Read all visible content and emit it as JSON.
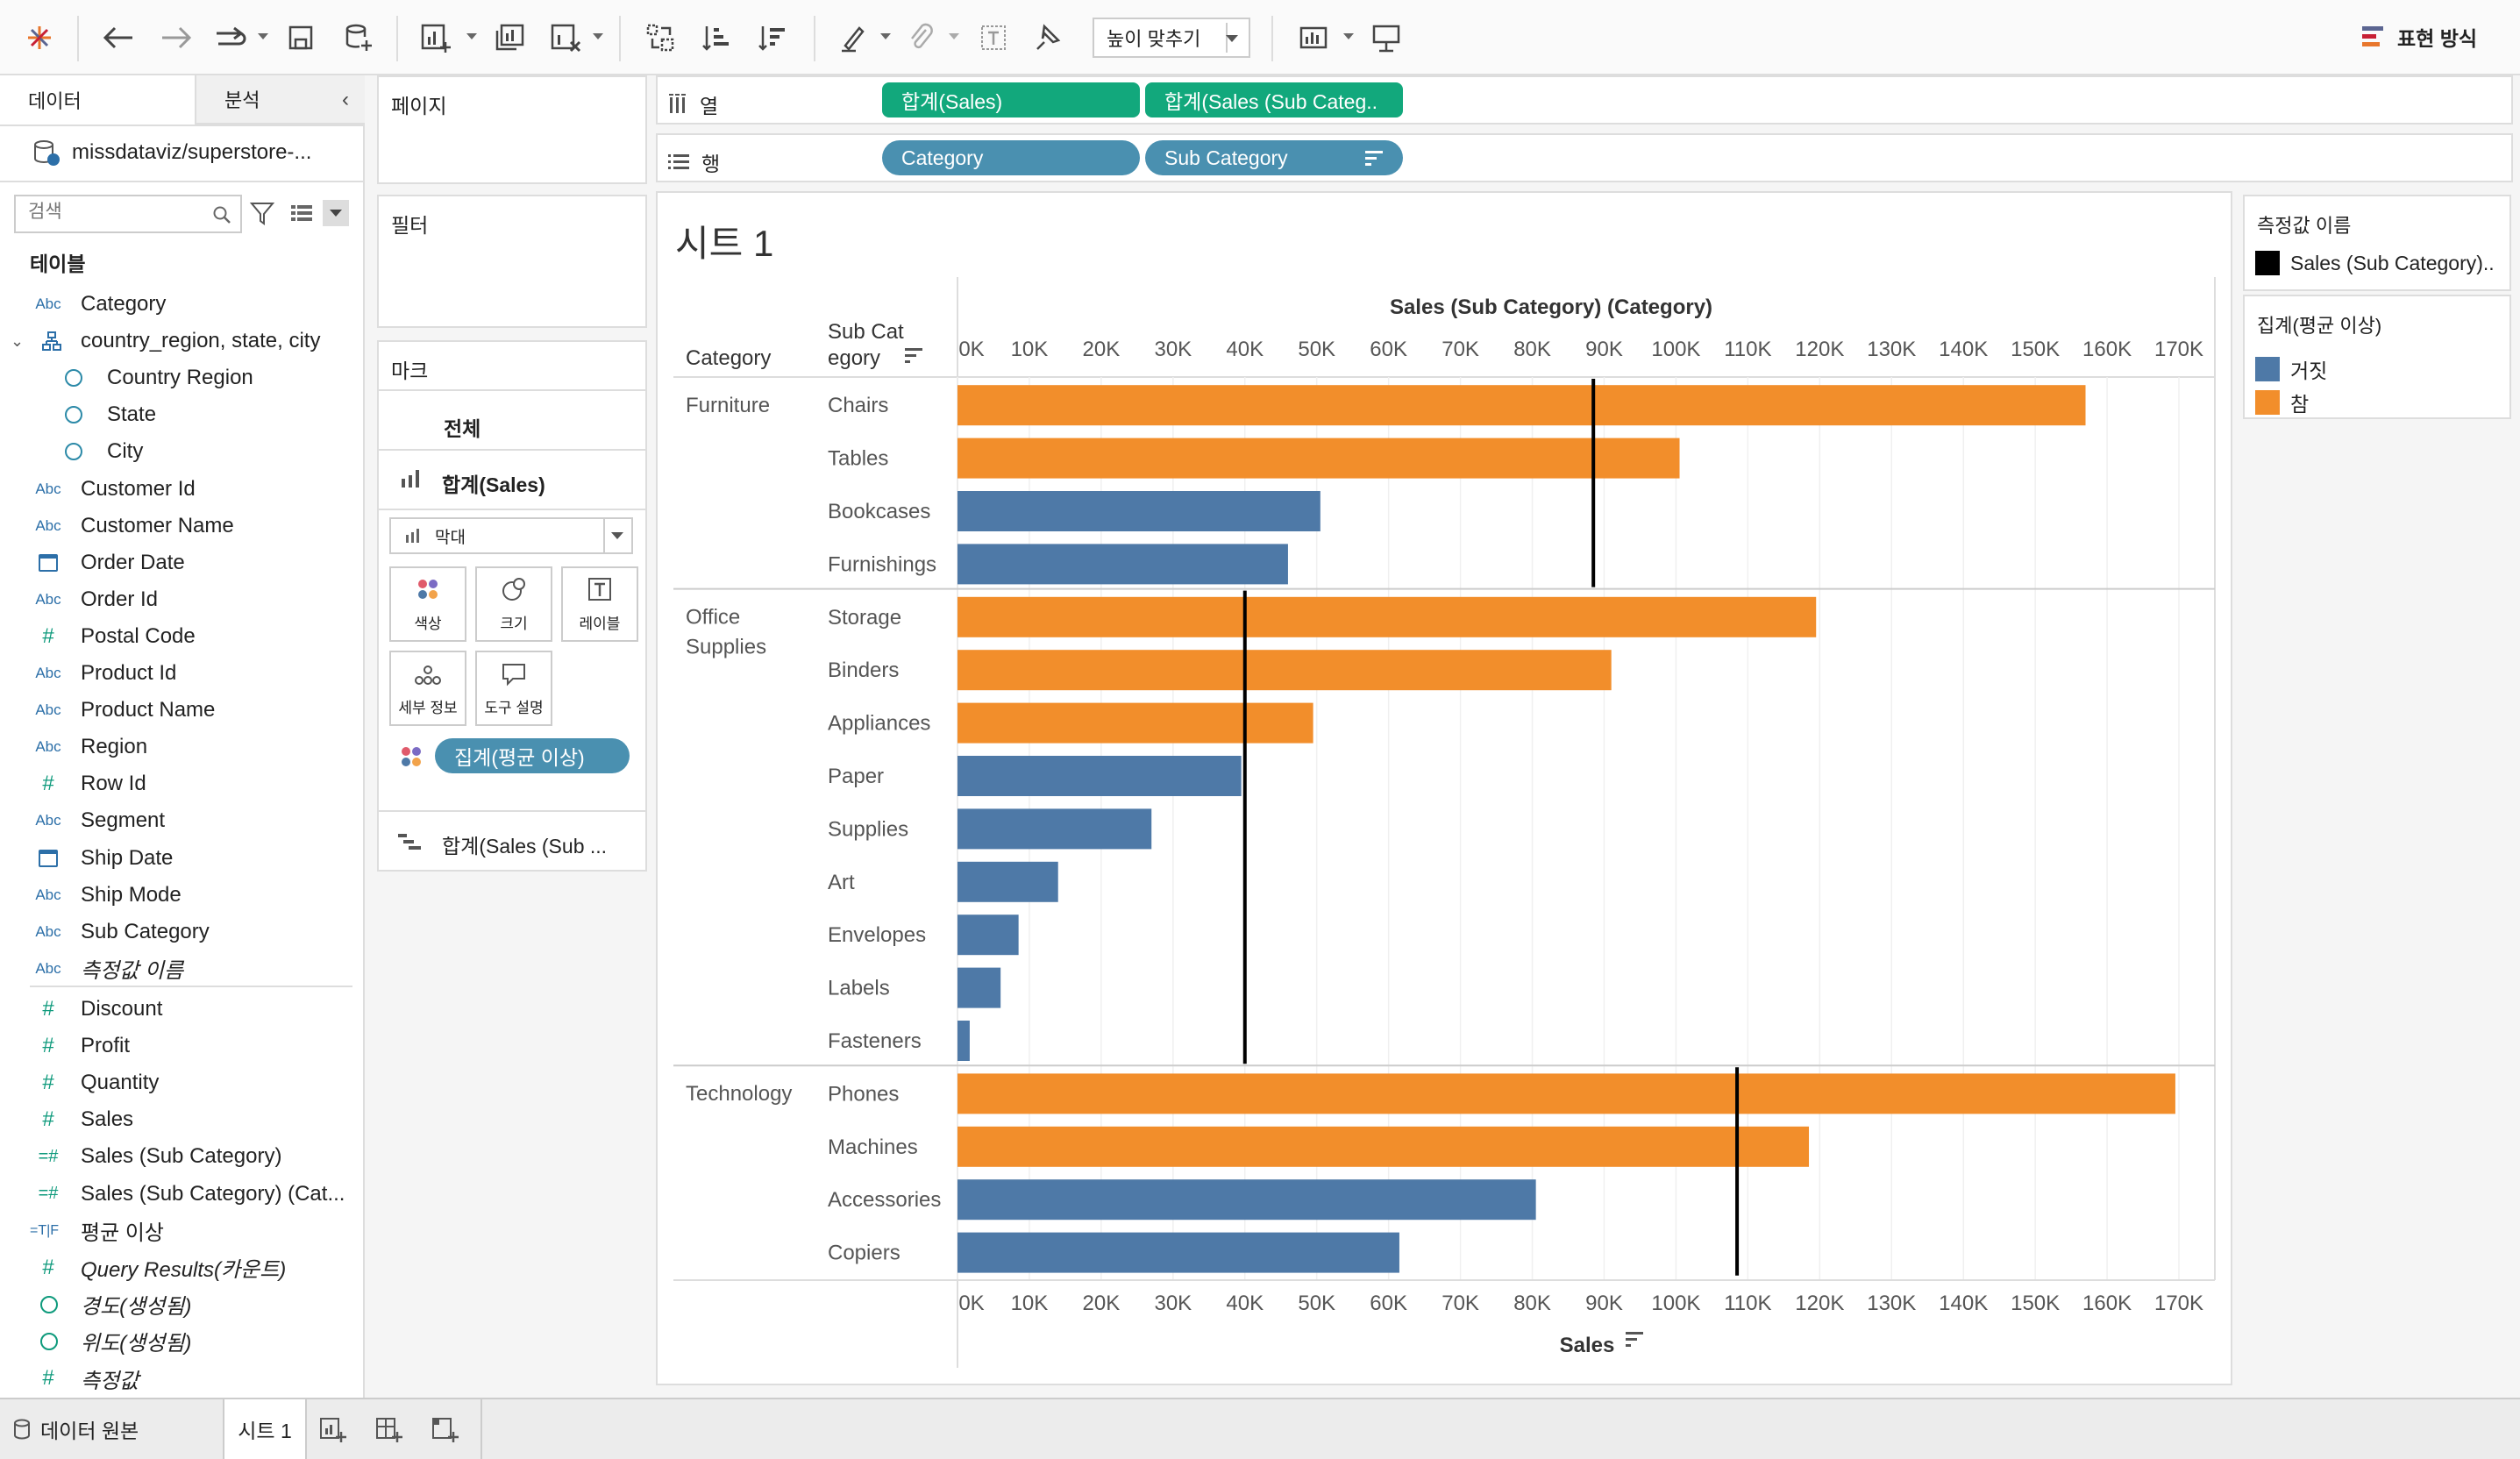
{
  "toolbar": {
    "fit_label": "높이 맞추기",
    "show_me_label": "표현 방식",
    "icons": [
      "tableau-logo-icon",
      "undo-icon",
      "redo-icon",
      "replay-icon",
      "save-icon",
      "add-datasource-icon",
      "new-worksheet-icon",
      "duplicate-icon",
      "clear-sheet-icon",
      "swap-icon",
      "sort-ascending-icon",
      "sort-descending-icon",
      "highlight-icon",
      "attach-icon",
      "text-icon",
      "pin-icon",
      "fit-dropdown",
      "show-cards-icon",
      "presentation-icon",
      "show-me-icon"
    ]
  },
  "data_pane": {
    "tab_data": "데이터",
    "tab_analysis": "분석",
    "datasource": "missdataviz/superstore-...",
    "search_placeholder": "검색",
    "tables_heading": "테이블",
    "fields": [
      {
        "icon": "Abc",
        "label": "Category",
        "indent": false
      },
      {
        "icon": "hier",
        "label": "country_region, state, city",
        "indent": false
      },
      {
        "icon": "globe",
        "label": "Country Region",
        "indent": true
      },
      {
        "icon": "globe",
        "label": "State",
        "indent": true
      },
      {
        "icon": "globe",
        "label": "City",
        "indent": true
      },
      {
        "icon": "Abc",
        "label": "Customer Id",
        "indent": false
      },
      {
        "icon": "Abc",
        "label": "Customer Name",
        "indent": false
      },
      {
        "icon": "cal",
        "label": "Order Date",
        "indent": false
      },
      {
        "icon": "Abc",
        "label": "Order Id",
        "indent": false
      },
      {
        "icon": "#",
        "label": "Postal Code",
        "indent": false
      },
      {
        "icon": "Abc",
        "label": "Product Id",
        "indent": false
      },
      {
        "icon": "Abc",
        "label": "Product Name",
        "indent": false
      },
      {
        "icon": "Abc",
        "label": "Region",
        "indent": false
      },
      {
        "icon": "#",
        "label": "Row Id",
        "indent": false
      },
      {
        "icon": "Abc",
        "label": "Segment",
        "indent": false
      },
      {
        "icon": "cal",
        "label": "Ship Date",
        "indent": false
      },
      {
        "icon": "Abc",
        "label": "Ship Mode",
        "indent": false
      },
      {
        "icon": "Abc",
        "label": "Sub Category",
        "indent": false
      },
      {
        "icon": "Abc",
        "label": "측정값 이름",
        "indent": false,
        "italic": true
      }
    ],
    "measures": [
      {
        "icon": "#",
        "label": "Discount"
      },
      {
        "icon": "#",
        "label": "Profit"
      },
      {
        "icon": "#",
        "label": "Quantity"
      },
      {
        "icon": "#",
        "label": "Sales"
      },
      {
        "icon": "=#",
        "label": "Sales (Sub Category)"
      },
      {
        "icon": "=#",
        "label": "Sales (Sub Category) (Cat..."
      },
      {
        "icon": "=T|F",
        "label": "평균 이상"
      },
      {
        "icon": "#",
        "label": "Query Results(카운트)",
        "italic": true
      },
      {
        "icon": "globe",
        "label": "경도(생성됨)",
        "italic": true
      },
      {
        "icon": "globe",
        "label": "위도(생성됨)",
        "italic": true
      },
      {
        "icon": "#",
        "label": "측정값",
        "italic": true
      }
    ]
  },
  "cards": {
    "pages": "페이지",
    "filters": "필터",
    "marks": "마크",
    "marks_all": "전체",
    "marks_sales": "합계(Sales)",
    "mark_type": "막대",
    "color_btn": "색상",
    "size_btn": "크기",
    "label_btn": "레이블",
    "detail_btn": "세부 정보",
    "tooltip_btn": "도구 설명",
    "color_pill": "집계(평균 이상)",
    "marks_sub": "합계(Sales (Sub ..."
  },
  "shelves": {
    "columns_label": "열",
    "rows_label": "행",
    "columns_pills": [
      "합계(Sales)",
      "합계(Sales (Sub Categ.."
    ],
    "rows_pills": [
      "Category",
      "Sub Category"
    ]
  },
  "sheet_title": "시트 1",
  "legends": {
    "measure_title": "측정값 이름",
    "measure_item": "Sales (Sub Category)..",
    "agg_title": "집계(평균 이상)",
    "false_label": "거짓",
    "true_label": "참",
    "colors": {
      "false": "#4e79a7",
      "true": "#f28e2b",
      "ref": "#000000"
    }
  },
  "chart_data": {
    "type": "bar",
    "orientation": "horizontal",
    "header_category": "Category",
    "header_subcat": "Sub Cat\negory",
    "top_axis_title": "Sales (Sub Category) (Category)",
    "bottom_axis_title": "Sales",
    "xlim": [
      0,
      175000
    ],
    "ticks": [
      "0K",
      "10K",
      "20K",
      "30K",
      "40K",
      "50K",
      "60K",
      "70K",
      "80K",
      "90K",
      "100K",
      "110K",
      "120K",
      "130K",
      "140K",
      "150K",
      "160K",
      "170K"
    ],
    "groups": [
      {
        "category": "Furniture",
        "category_lines": [
          "Furniture"
        ],
        "reference": 88500,
        "items": [
          {
            "sub": "Chairs",
            "value": 157000,
            "above": true
          },
          {
            "sub": "Tables",
            "value": 100500,
            "above": true
          },
          {
            "sub": "Bookcases",
            "value": 50500,
            "above": false
          },
          {
            "sub": "Furnishings",
            "value": 46000,
            "above": false
          }
        ]
      },
      {
        "category": "Office Supplies",
        "category_lines": [
          "Office",
          "Supplies"
        ],
        "reference": 40000,
        "items": [
          {
            "sub": "Storage",
            "value": 119500,
            "above": true
          },
          {
            "sub": "Binders",
            "value": 91000,
            "above": true
          },
          {
            "sub": "Appliances",
            "value": 49500,
            "above": true
          },
          {
            "sub": "Paper",
            "value": 39500,
            "above": false
          },
          {
            "sub": "Supplies",
            "value": 27000,
            "above": false
          },
          {
            "sub": "Art",
            "value": 14000,
            "above": false
          },
          {
            "sub": "Envelopes",
            "value": 8500,
            "above": false
          },
          {
            "sub": "Labels",
            "value": 6000,
            "above": false
          },
          {
            "sub": "Fasteners",
            "value": 1700,
            "above": false
          }
        ]
      },
      {
        "category": "Technology",
        "category_lines": [
          "Technology"
        ],
        "reference": 108500,
        "items": [
          {
            "sub": "Phones",
            "value": 169500,
            "above": true
          },
          {
            "sub": "Machines",
            "value": 118500,
            "above": true
          },
          {
            "sub": "Accessories",
            "value": 80500,
            "above": false
          },
          {
            "sub": "Copiers",
            "value": 61500,
            "above": false
          }
        ]
      }
    ]
  },
  "bottom": {
    "datasource_tab": "데이터 원본",
    "sheet_tab": "시트 1"
  }
}
